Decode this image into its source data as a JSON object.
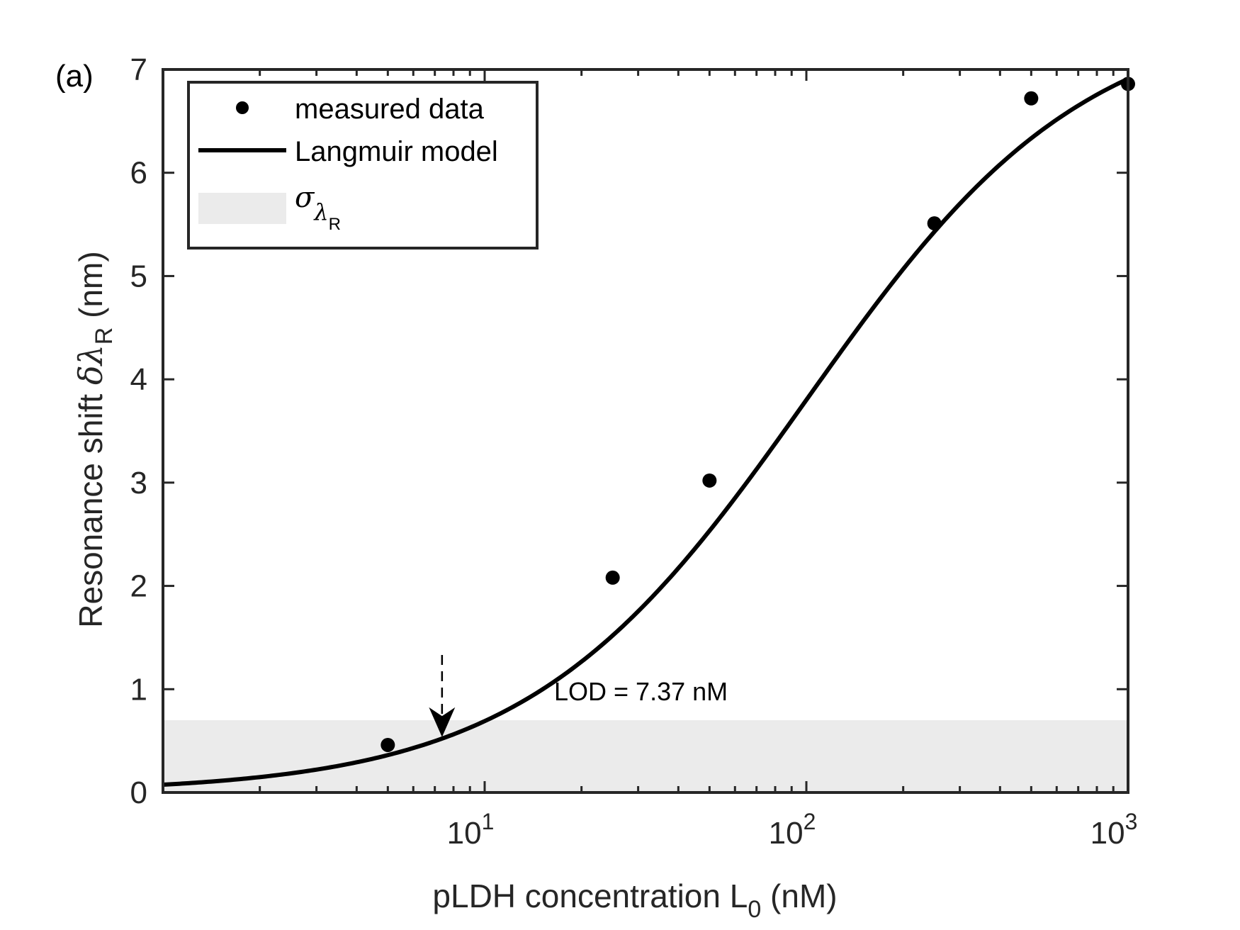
{
  "chart_data": {
    "type": "line",
    "panel_label": "(a)",
    "xlabel": {
      "main": "pLDH concentration L",
      "sub": "0",
      "unit": " (nM)"
    },
    "ylabel": {
      "main": "Resonance shift ",
      "delta_lambda": "δλ",
      "sub": "R",
      "unit": " (nm)"
    },
    "x_scale": "log",
    "xlim": [
      1,
      1000
    ],
    "ylim": [
      0,
      7
    ],
    "x_ticks": [
      {
        "value": 10,
        "base": "10",
        "exp": "1"
      },
      {
        "value": 100,
        "base": "10",
        "exp": "2"
      },
      {
        "value": 1000,
        "base": "10",
        "exp": "3"
      }
    ],
    "y_ticks": [
      0,
      1,
      2,
      3,
      4,
      5,
      6,
      7
    ],
    "grid": false,
    "legend": {
      "position": "top-left",
      "entries": [
        {
          "type": "marker",
          "label": "measured data"
        },
        {
          "type": "line",
          "label": "Langmuir model"
        },
        {
          "type": "band",
          "label_symbol": "σ",
          "label_sub": "λ",
          "label_subsub": "R"
        }
      ]
    },
    "series": [
      {
        "name": "measured data",
        "kind": "scatter",
        "color": "#000000",
        "x": [
          5,
          25,
          50,
          250,
          500,
          1000
        ],
        "y": [
          0.46,
          2.08,
          3.02,
          5.51,
          6.72,
          6.86
        ]
      },
      {
        "name": "Langmuir model",
        "kind": "line",
        "color": "#000000",
        "model": {
          "bmax": 7.6,
          "kd": 100
        },
        "x_range": [
          1,
          1000
        ]
      },
      {
        "name": "σλR",
        "kind": "band",
        "color": "#ebebeb",
        "y_range": [
          0,
          0.7
        ]
      }
    ],
    "annotations": [
      {
        "text": "LOD = 7.37 nM",
        "arrow_x": 7.37
      }
    ]
  },
  "colors": {
    "axis": "#262626",
    "band": "#ebebeb",
    "curve": "#000000"
  }
}
